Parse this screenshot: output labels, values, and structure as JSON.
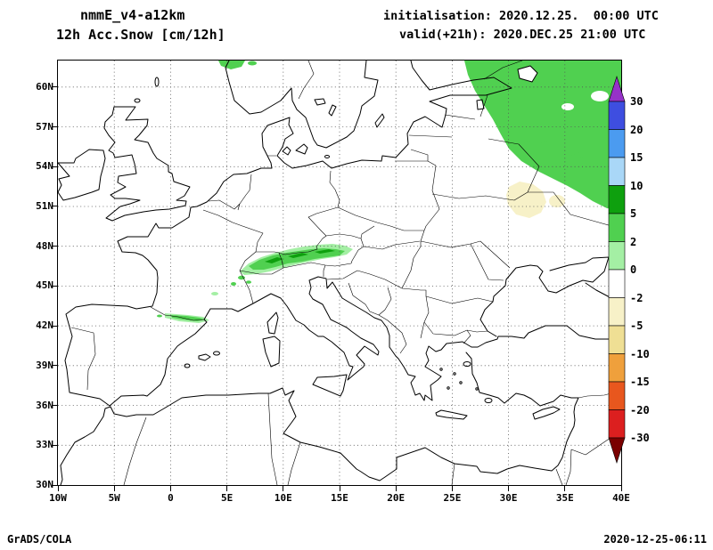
{
  "header": {
    "model": "nmmE_v4-a12km",
    "field": "12h Acc.Snow [cm/12h]",
    "init": "initialisation: 2020.12.25.  00:00 UTC",
    "valid": "valid(+21h): 2020.DEC.25 21:00 UTC"
  },
  "footer": {
    "left": "GrADS/COLA",
    "right": "2020-12-25-06:11"
  },
  "axes": {
    "lat_ticks": [
      {
        "label": "60N",
        "deg": 60
      },
      {
        "label": "57N",
        "deg": 57
      },
      {
        "label": "54N",
        "deg": 54
      },
      {
        "label": "51N",
        "deg": 51
      },
      {
        "label": "48N",
        "deg": 48
      },
      {
        "label": "45N",
        "deg": 45
      },
      {
        "label": "42N",
        "deg": 42
      },
      {
        "label": "39N",
        "deg": 39
      },
      {
        "label": "36N",
        "deg": 36
      },
      {
        "label": "33N",
        "deg": 33
      },
      {
        "label": "30N",
        "deg": 30
      }
    ],
    "lon_ticks": [
      {
        "label": "10W",
        "deg": -10
      },
      {
        "label": "5W",
        "deg": -5
      },
      {
        "label": "0",
        "deg": 0
      },
      {
        "label": "5E",
        "deg": 5
      },
      {
        "label": "10E",
        "deg": 10
      },
      {
        "label": "15E",
        "deg": 15
      },
      {
        "label": "20E",
        "deg": 20
      },
      {
        "label": "25E",
        "deg": 25
      },
      {
        "label": "30E",
        "deg": 30
      },
      {
        "label": "35E",
        "deg": 35
      },
      {
        "label": "40E",
        "deg": 40
      }
    ]
  },
  "colorbar": {
    "labels": [
      "30",
      "20",
      "15",
      "10",
      "5",
      "2",
      "0",
      "-2",
      "-5",
      "-10",
      "-15",
      "-20",
      "-30"
    ],
    "colors_top_to_bottom": [
      "#9632C8",
      "#3E4EE0",
      "#4B9BF0",
      "#A9D7F7",
      "#0EA00E",
      "#50D050",
      "#A4EFA4",
      "#FFFFFF",
      "#F7F1C8",
      "#EFDF94",
      "#EFA03C",
      "#E8571E",
      "#DC1F1F",
      "#7A0000"
    ]
  },
  "palette": {
    "p0_2": "#A4EFA4",
    "p2_5": "#50D050",
    "p5_10": "#0EA00E",
    "m2_5": "#F7F1C8",
    "white": "#FFFFFF"
  },
  "chart_data": {
    "type": "heatmap",
    "title": "12h Acc.Snow [cm/12h]",
    "model": "nmmE_v4-a12km",
    "initialisation": "2020.12.25 00:00 UTC",
    "valid": "2020.DEC.25 21:00 UTC (+21h)",
    "lon_range_deg": [
      -10,
      40
    ],
    "lat_range_deg": [
      30,
      62
    ],
    "grid": "dotted graticule every 3 deg lat / 5 deg lon",
    "legend_position": "right vertical colorbar",
    "contour_levels_cm": [
      -30,
      -20,
      -15,
      -10,
      -5,
      -2,
      0,
      2,
      5,
      10,
      15,
      20,
      30
    ],
    "shaded_features": [
      {
        "region": "NW Russia / eastern Baltic (top-right corner)",
        "lon": "26E-40E",
        "lat": "54N-62N",
        "snow_cm": "2-5"
      },
      {
        "region": "Alps (Switzerland-Austria arc)",
        "lon": "6E-16E",
        "lat": "45.5N-48N",
        "snow_cm": "2-10 with 5-10 cores"
      },
      {
        "region": "Pyrenees / NE Spain streak",
        "lon": "1W-3E",
        "lat": "42N-43.5N",
        "snow_cm": "2-5"
      },
      {
        "region": "S Norway mountains (top edge)",
        "lon": "4E-7E",
        "lat": "61N-62N",
        "snow_cm": "2-5"
      },
      {
        "region": "Central Ukraine patch",
        "lon": "30E-34E",
        "lat": "49.5N-52.5N",
        "snow_cm": "-2 to -5 (pale yellow)"
      }
    ]
  }
}
